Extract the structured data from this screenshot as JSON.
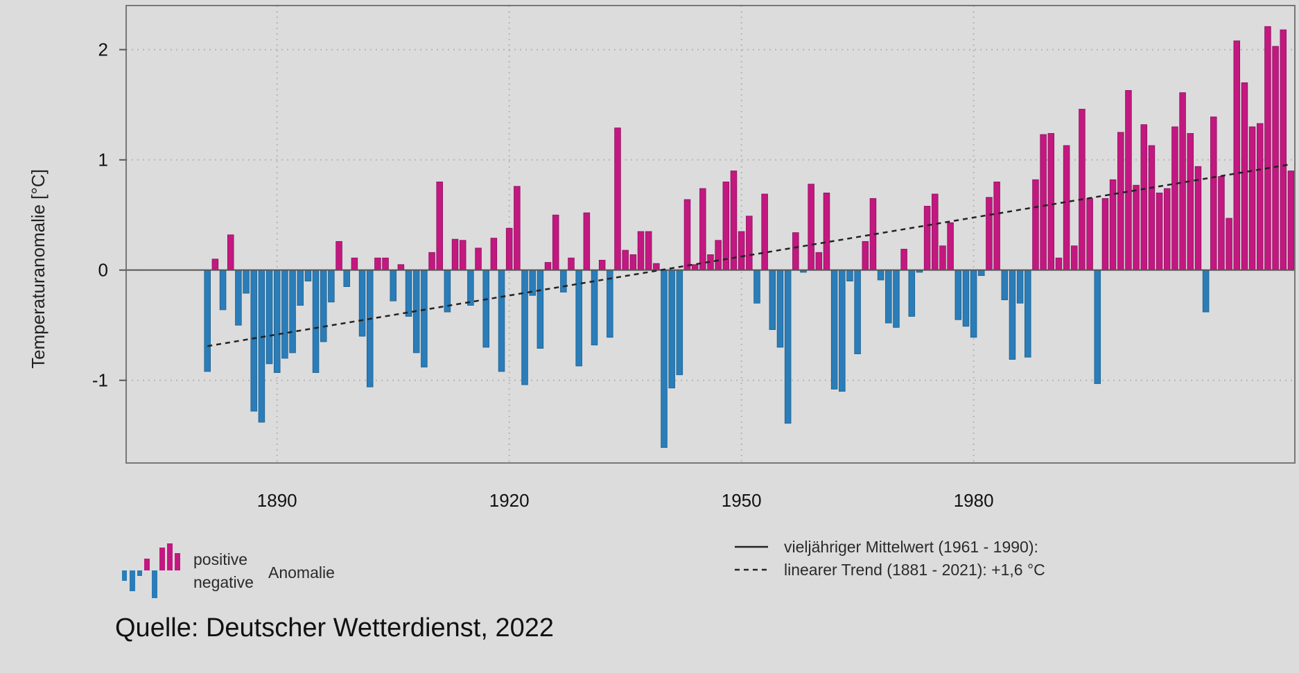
{
  "chart_data": {
    "type": "bar",
    "ylabel": "Temperaturanomalie [°C]",
    "xlabel": "",
    "title": "",
    "ylim": [
      -1.75,
      2.4
    ],
    "xlim": [
      1870.5,
      2021.5
    ],
    "x_ticks": [
      1890,
      1920,
      1950,
      1980
    ],
    "y_ticks": [
      -1,
      0,
      1,
      2
    ],
    "grid": "dotted",
    "x": [
      1881,
      1882,
      1883,
      1884,
      1885,
      1886,
      1887,
      1888,
      1889,
      1890,
      1891,
      1892,
      1893,
      1894,
      1895,
      1896,
      1897,
      1898,
      1899,
      1900,
      1901,
      1902,
      1903,
      1904,
      1905,
      1906,
      1907,
      1908,
      1909,
      1910,
      1911,
      1912,
      1913,
      1914,
      1915,
      1916,
      1917,
      1918,
      1919,
      1920,
      1921,
      1922,
      1923,
      1924,
      1925,
      1926,
      1927,
      1928,
      1929,
      1930,
      1931,
      1932,
      1933,
      1934,
      1935,
      1936,
      1937,
      1938,
      1939,
      1940,
      1941,
      1942,
      1943,
      1944,
      1945,
      1946,
      1947,
      1948,
      1949,
      1950,
      1951,
      1952,
      1953,
      1954,
      1955,
      1956,
      1957,
      1958,
      1959,
      1960,
      1961,
      1962,
      1963,
      1964,
      1965,
      1966,
      1967,
      1968,
      1969,
      1970,
      1971,
      1972,
      1973,
      1974,
      1975,
      1976,
      1977,
      1978,
      1979,
      1980,
      1981,
      1982,
      1983,
      1984,
      1985,
      1986,
      1987,
      1988,
      1989,
      1990,
      1991,
      1992,
      1993,
      1994,
      1995,
      1996,
      1997,
      1998,
      1999,
      2000,
      2001,
      2002,
      2003,
      2004,
      2005,
      2006,
      2007,
      2008,
      2009,
      2010,
      2011,
      2012,
      2013,
      2014,
      2015,
      2016,
      2017,
      2018,
      2019,
      2020,
      2021
    ],
    "values": [
      -0.92,
      0.1,
      -0.36,
      0.32,
      -0.5,
      -0.21,
      -1.28,
      -1.38,
      -0.85,
      -0.93,
      -0.8,
      -0.75,
      -0.32,
      -0.1,
      -0.93,
      -0.65,
      -0.29,
      0.26,
      -0.15,
      0.11,
      -0.6,
      -1.06,
      0.11,
      0.11,
      -0.28,
      0.05,
      -0.42,
      -0.75,
      -0.88,
      0.16,
      0.8,
      -0.38,
      0.28,
      0.27,
      -0.32,
      0.2,
      -0.7,
      0.29,
      -0.92,
      0.38,
      0.76,
      -1.04,
      -0.23,
      -0.71,
      0.07,
      0.5,
      -0.2,
      0.11,
      -0.87,
      0.52,
      -0.68,
      0.09,
      -0.61,
      1.29,
      0.18,
      0.14,
      0.35,
      0.35,
      0.06,
      -1.61,
      -1.07,
      -0.95,
      0.64,
      0.05,
      0.74,
      0.14,
      0.27,
      0.8,
      0.9,
      0.35,
      0.49,
      -0.3,
      0.69,
      -0.54,
      -0.7,
      -1.39,
      0.34,
      -0.02,
      0.78,
      0.16,
      0.7,
      -1.08,
      -1.1,
      -0.1,
      -0.76,
      0.26,
      0.65,
      -0.09,
      -0.48,
      -0.52,
      0.19,
      -0.42,
      -0.02,
      0.58,
      0.69,
      0.22,
      0.43,
      -0.45,
      -0.51,
      -0.61,
      -0.05,
      0.66,
      0.8,
      -0.27,
      -0.81,
      -0.3,
      -0.79,
      0.82,
      1.23,
      1.24,
      0.11,
      1.13,
      0.22,
      1.46,
      0.65,
      -1.03,
      0.65,
      0.82,
      1.25,
      1.63,
      0.77,
      1.32,
      1.13,
      0.7,
      0.74,
      1.3,
      1.61,
      1.24,
      0.94,
      -0.38,
      1.39,
      0.85,
      0.47,
      2.08,
      1.7,
      1.3,
      1.33,
      2.21,
      2.03,
      2.18,
      0.9
    ],
    "trend": {
      "x": [
        1881,
        2021
      ],
      "y": [
        -0.69,
        0.96
      ]
    },
    "legend": [
      {
        "label": "vieljähriger Mittelwert (1961 - 1990):",
        "style": "solid"
      },
      {
        "label": "linearer Trend (1881 - 2021): +1,6 °C",
        "style": "dashed"
      }
    ],
    "anomaly_legend": {
      "positive": "positive",
      "negative": "negative",
      "caption": "Anomalie"
    },
    "colors": {
      "positive": "#c2187f",
      "negative": "#2a7db8",
      "trend": "#222222",
      "background": "#dcdcdc"
    },
    "source": "Quelle: Deutscher Wetterdienst, 2022"
  }
}
